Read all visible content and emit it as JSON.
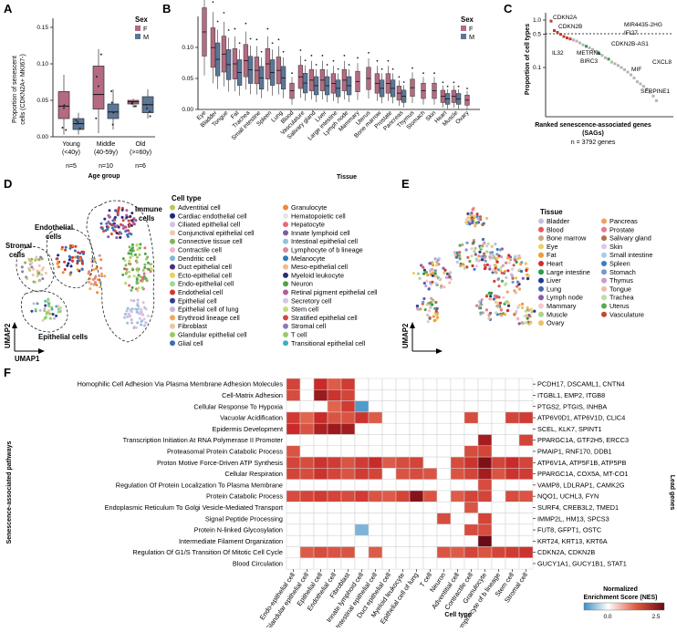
{
  "panels": {
    "a": "A",
    "b": "B",
    "c": "C",
    "d": "D",
    "e": "E",
    "f": "F"
  },
  "sex_legend": {
    "title": "Sex",
    "f": "F",
    "m": "M",
    "f_color": "#b56a82",
    "m_color": "#5b7699"
  },
  "panel_a": {
    "ylabel_top": "Proportion of senescent",
    "ylabel_bottom": "cells (CDKN2A+ MKI67-)",
    "xlabel": "Age group",
    "y_ticks": [
      "0.00",
      "0.05",
      "0.10",
      "0.15"
    ],
    "groups": [
      {
        "name": "Young",
        "range": "(<40y)",
        "n": "n=5",
        "f": {
          "q1": 0.025,
          "med": 0.042,
          "q3": 0.062,
          "lo": 0.003,
          "hi": 0.085
        },
        "m": {
          "q1": 0.01,
          "med": 0.018,
          "q3": 0.025,
          "lo": 0.003,
          "hi": 0.033
        }
      },
      {
        "name": "Middle",
        "range": "(40-59y)",
        "n": "n=10",
        "f": {
          "q1": 0.038,
          "med": 0.058,
          "q3": 0.097,
          "lo": 0.005,
          "hi": 0.12
        },
        "m": {
          "q1": 0.025,
          "med": 0.034,
          "q3": 0.045,
          "lo": 0.01,
          "hi": 0.065
        }
      },
      {
        "name": "Old",
        "range": "(>=60y)",
        "n": "n=6",
        "f": {
          "q1": 0.045,
          "med": 0.048,
          "q3": 0.05,
          "lo": 0.04,
          "hi": 0.052
        },
        "m": {
          "q1": 0.033,
          "med": 0.044,
          "q3": 0.055,
          "lo": 0.025,
          "hi": 0.065
        }
      }
    ]
  },
  "panel_b": {
    "ylabel": "",
    "xlabel": "Tissue",
    "y_ticks": [
      "0.00",
      "0.05",
      "0.10"
    ],
    "tissues": [
      "Eye",
      "Bladder",
      "Tongue",
      "Fat",
      "Trachea",
      "Small intestine",
      "Spleen",
      "Lung",
      "Blood",
      "Vasculature",
      "Salivary gland",
      "Liver",
      "Large intestine",
      "Lymph node",
      "Mammary",
      "Uterus",
      "Bone marrow",
      "Prostate",
      "Pancreas",
      "Thymus",
      "Stomach",
      "Skin",
      "Heart",
      "Muscle",
      "Ovary"
    ],
    "medians": [
      0.125,
      0.095,
      0.085,
      0.07,
      0.075,
      0.06,
      0.07,
      0.06,
      0.03,
      0.05,
      0.045,
      0.045,
      0.04,
      0.045,
      0.045,
      0.05,
      0.04,
      0.04,
      0.025,
      0.035,
      0.03,
      0.03,
      0.02,
      0.02,
      0.015
    ],
    "has_both": [
      false,
      true,
      true,
      true,
      true,
      true,
      true,
      true,
      false,
      true,
      true,
      true,
      true,
      true,
      false,
      false,
      true,
      true,
      true,
      false,
      false,
      false,
      true,
      true,
      false
    ]
  },
  "panel_c": {
    "ylabel": "Proportion of cell types",
    "xlabel": "Ranked senescence-associated genes",
    "xlabel2": "(SAGs)",
    "note": "n = 3792 genes",
    "y_ticks": [
      "1.0",
      "0.5",
      "0.1"
    ],
    "genes": [
      "CDKN2A",
      "CDKN2B",
      "MIR4435-2HG",
      "IFI27",
      "IL32",
      "METRNL",
      "BIRC3",
      "CDKN2B-AS1",
      "CXCL8",
      "MIF",
      "SERPINE1"
    ]
  },
  "panel_d": {
    "axis_x": "UMAP1",
    "axis_y": "UMAP2",
    "labels": {
      "immune": "Immune",
      "immune2": "cells",
      "endothelial": "Endothelial",
      "endothelial2": "cells",
      "stromal": "Stromal",
      "stromal2": "cells",
      "epithelial": "Epithelial cells"
    },
    "legend_title": "Cell type",
    "col1": [
      {
        "name": "Adventitial cell",
        "color": "#b3c95c"
      },
      {
        "name": "Cardiac endothelial cell",
        "color": "#1a2a7a"
      },
      {
        "name": "Ciliated epithelial cell",
        "color": "#cfc3e2"
      },
      {
        "name": "Conjunctival epithelial cell",
        "color": "#f3c9a8"
      },
      {
        "name": "Connective tissue cell",
        "color": "#86b45a"
      },
      {
        "name": "Contractile cell",
        "color": "#f1b6c8"
      },
      {
        "name": "Dendritic cell",
        "color": "#7fb8d8"
      },
      {
        "name": "Duct epithelial cell",
        "color": "#4a2c7e"
      },
      {
        "name": "Ecto-epithelial cell",
        "color": "#ead05a"
      },
      {
        "name": "Endo-epithelial cell",
        "color": "#a5d59a"
      },
      {
        "name": "Endothelial cell",
        "color": "#d6362c"
      },
      {
        "name": "Epithelial cell",
        "color": "#2f3f8c"
      },
      {
        "name": "Epithelial cell of lung",
        "color": "#c6b7dc"
      },
      {
        "name": "Erythroid lineage cell",
        "color": "#f0a85c"
      },
      {
        "name": "Fibroblast",
        "color": "#e8c9a5"
      },
      {
        "name": "Glandular epithelial cell",
        "color": "#98cc66"
      },
      {
        "name": "Glial cell",
        "color": "#3b6fb0"
      }
    ],
    "col2": [
      {
        "name": "Granulocyte",
        "color": "#f0882e"
      },
      {
        "name": "Hematopoietic cell",
        "color": "#e6e6e6"
      },
      {
        "name": "Hepatocyte",
        "color": "#e8697c"
      },
      {
        "name": "Innate lymphoid cell",
        "color": "#7e5aa8"
      },
      {
        "name": "Intestinal epithelial cell",
        "color": "#8cc4e0"
      },
      {
        "name": "Lymphocyte of b lineage",
        "color": "#d9899a"
      },
      {
        "name": "Melanocyte",
        "color": "#2c7bb6"
      },
      {
        "name": "Meso-epithelial cell",
        "color": "#f5b98a"
      },
      {
        "name": "Myeloid leukocyte",
        "color": "#2a2f7a"
      },
      {
        "name": "Neuron",
        "color": "#4aa548"
      },
      {
        "name": "Retinal pigment epithelial cell",
        "color": "#b45aa0"
      },
      {
        "name": "Secretory cell",
        "color": "#d8c6e6"
      },
      {
        "name": "Stem cell",
        "color": "#c8dc78"
      },
      {
        "name": "Stratified epithelial cell",
        "color": "#d04a3a"
      },
      {
        "name": "Stromal cell",
        "color": "#8a7bb8"
      },
      {
        "name": "T cell",
        "color": "#9bc96b"
      },
      {
        "name": "Transitional epithelial cell",
        "color": "#3ab0b8"
      }
    ]
  },
  "panel_e": {
    "axis_y": "UMAP2",
    "legend_title": "Tissue",
    "col1": [
      {
        "name": "Bladder",
        "color": "#c9bde0"
      },
      {
        "name": "Blood",
        "color": "#e05a5a"
      },
      {
        "name": "Bone marrow",
        "color": "#c7a98c"
      },
      {
        "name": "Eye",
        "color": "#e8d26a"
      },
      {
        "name": "Fat",
        "color": "#f29a38"
      },
      {
        "name": "Heart",
        "color": "#d62c2c"
      },
      {
        "name": "Large intestine",
        "color": "#2a9c48"
      },
      {
        "name": "Liver",
        "color": "#243a8a"
      },
      {
        "name": "Lung",
        "color": "#4b68b0"
      },
      {
        "name": "Lymph node",
        "color": "#8a5aa8"
      },
      {
        "name": "Mammary",
        "color": "#f3c8d0"
      },
      {
        "name": "Muscle",
        "color": "#a8d48a"
      },
      {
        "name": "Ovary",
        "color": "#f0c060"
      }
    ],
    "col2": [
      {
        "name": "Pancreas",
        "color": "#f0a060"
      },
      {
        "name": "Prostate",
        "color": "#e87890"
      },
      {
        "name": "Salivary gland",
        "color": "#b07050"
      },
      {
        "name": "Skin",
        "color": "#d9c9e8"
      },
      {
        "name": "Small intestine",
        "color": "#a8cce6"
      },
      {
        "name": "Spleen",
        "color": "#3a7ec0"
      },
      {
        "name": "Stomach",
        "color": "#7898c8"
      },
      {
        "name": "Thymus",
        "color": "#c89cd0"
      },
      {
        "name": "Tongue",
        "color": "#f4b8a8"
      },
      {
        "name": "Trachea",
        "color": "#b8e0a0"
      },
      {
        "name": "Uterus",
        "color": "#5aa850"
      },
      {
        "name": "Vasculature",
        "color": "#c04a30"
      }
    ]
  },
  "panel_f": {
    "ylabel": "Senescence-associated pathways",
    "xlabel": "Cell type",
    "right_label": "Lead genes",
    "pathways": [
      "Homophilic Cell Adhesion Via Plasma Membrane Adhesion Molecules",
      "Cell-Matrix Adhesion",
      "Cellular Response To Hypoxia",
      "Vacuolar Acidification",
      "Epidermis Development",
      "Transcription Initiation At RNA Polymerase II Promoter",
      "Proteasomal Protein Catabolic Process",
      "Proton Motive Force-Driven ATP Synthesis",
      "Cellular Respiration",
      "Regulation Of Protein Localization To Plasma Membrane",
      "Protein Catabolic Process",
      "Endoplasmic Reticulum To Golgi Vesicle-Mediated Transport",
      "Signal Peptide Processing",
      "Protein N-linked Glycosylation",
      "Intermediate Filament Organization",
      "Regulation Of G1/S Transition Of Mitotic Cell Cycle",
      "Blood Circulation"
    ],
    "genes": [
      "PCDH17, DSCAML1, CNTN4",
      "ITGBL1, EMP2, ITGB8",
      "PTGS2, PTGIS, INHBA",
      "ATP6V0D1, ATP6V1D, CLIC4",
      "SCEL, KLK7, SPINT1",
      "PPARGC1A, GTF2H5, ERCC3",
      "PMAIP1, RNF170, DDB1",
      "ATP6V1A, ATP5F1B, ATP5PB",
      "PPARGC1A, COX5A, MT-CO1",
      "VAMP8, LDLRAP1, CAMK2G",
      "NQO1, UCHL3, FYN",
      "SURF4, CREB3L2, TMED1",
      "IMMP2L, HM13, SPCS3",
      "FUT8, GFPT1, OSTC",
      "KRT24, KRT13, KRT6A",
      "CDKN2A, CDKN2B",
      "GUCY1A1, GUCY1B1, STAT1"
    ],
    "celltypes": [
      "Endo-epithelial cell",
      "Glandular epithelial cell",
      "Epithelial cell",
      "Endothelial cell",
      "Fibroblast",
      "Innate lymphoid cell",
      "Intestinal epithelial cell",
      "Duct epithelial cell",
      "Myeloid leukocyte",
      "Epithelial cell of lung",
      "T cell",
      "Neuron",
      "Adventitial cell",
      "Contractile cell",
      "Granulocyte",
      "Lymphocyte of b lineage",
      "Stem cell",
      "Stromal cell"
    ],
    "nes": [
      [
        1.6,
        0,
        1.9,
        1.3,
        1.7,
        0,
        0,
        0,
        0,
        0,
        0,
        0,
        0,
        0,
        0,
        0,
        0,
        0
      ],
      [
        1.5,
        0,
        2.4,
        1.8,
        1.6,
        0,
        0,
        0,
        0,
        0,
        0,
        0,
        0,
        0,
        0,
        0,
        0,
        0
      ],
      [
        0,
        0,
        0,
        1.2,
        1.7,
        -0.8,
        0,
        0,
        0,
        0,
        0,
        0,
        0,
        0,
        0,
        0,
        0,
        0
      ],
      [
        1.7,
        1.2,
        1.9,
        1.4,
        1.4,
        1.8,
        1.3,
        0,
        0,
        0,
        0,
        0,
        0,
        1.5,
        0,
        0,
        1.6,
        1.7
      ],
      [
        1.9,
        1.4,
        2.2,
        2.4,
        2.3,
        0,
        0,
        0,
        0,
        0,
        0,
        0,
        0,
        0,
        0,
        0,
        0,
        0
      ],
      [
        0,
        0,
        0,
        0,
        0,
        0,
        0,
        0,
        0,
        0,
        0,
        0,
        0,
        0,
        2.3,
        0,
        0,
        1.6
      ],
      [
        1.4,
        0,
        0,
        0,
        0,
        0,
        0,
        0,
        0,
        0,
        0,
        0,
        0,
        1.5,
        1.6,
        0,
        0,
        0
      ],
      [
        1.6,
        1.5,
        1.8,
        1.7,
        1.4,
        1.7,
        1.9,
        1.3,
        1.5,
        1.6,
        0,
        0,
        1.5,
        1.8,
        2.7,
        1.6,
        1.9,
        1.6
      ],
      [
        1.6,
        1.5,
        1.8,
        1.6,
        1.4,
        1.7,
        1.6,
        0,
        1.4,
        1.5,
        1.4,
        0,
        1.4,
        1.6,
        2.3,
        1.4,
        1.8,
        1.7
      ],
      [
        0,
        0,
        0,
        0,
        0,
        0,
        0,
        0,
        0,
        0,
        0,
        0,
        0,
        0,
        1.5,
        0,
        0,
        0
      ],
      [
        1.5,
        1.6,
        1.7,
        1.6,
        1.5,
        1.7,
        1.4,
        1.3,
        1.6,
        2.6,
        1.4,
        0,
        1.3,
        1.6,
        1.6,
        0,
        1.5,
        1.4
      ],
      [
        0,
        0,
        0,
        0,
        0,
        0,
        0,
        0,
        0,
        0,
        0,
        0,
        0,
        1.4,
        0,
        0,
        0,
        0
      ],
      [
        0,
        0,
        0,
        0,
        0,
        0,
        0,
        0,
        0,
        0,
        0,
        1.5,
        0,
        0,
        1.6,
        0,
        0,
        0
      ],
      [
        0,
        0,
        0,
        0,
        0,
        -0.6,
        0,
        0,
        0,
        0,
        0,
        0,
        0,
        1.5,
        1.5,
        0,
        0,
        0
      ],
      [
        0,
        0,
        0,
        0,
        0,
        0,
        0,
        0,
        0,
        0,
        0,
        0,
        0,
        0,
        2.9,
        0,
        0,
        0
      ],
      [
        0,
        1.3,
        1.5,
        1.4,
        1.4,
        0,
        1.3,
        0,
        0,
        0,
        0,
        1.4,
        1.3,
        1.6,
        1.4,
        1.6,
        1.7,
        1.8
      ],
      [
        0,
        0,
        0,
        0,
        0,
        0,
        0,
        0,
        0,
        0,
        0,
        0,
        0,
        0,
        0,
        0,
        0,
        0
      ]
    ],
    "legend_title_top": "Normalized",
    "legend_title_bottom": "Enrichment Score (NES)",
    "legend_ticks": [
      "0.0",
      "2.5"
    ]
  }
}
